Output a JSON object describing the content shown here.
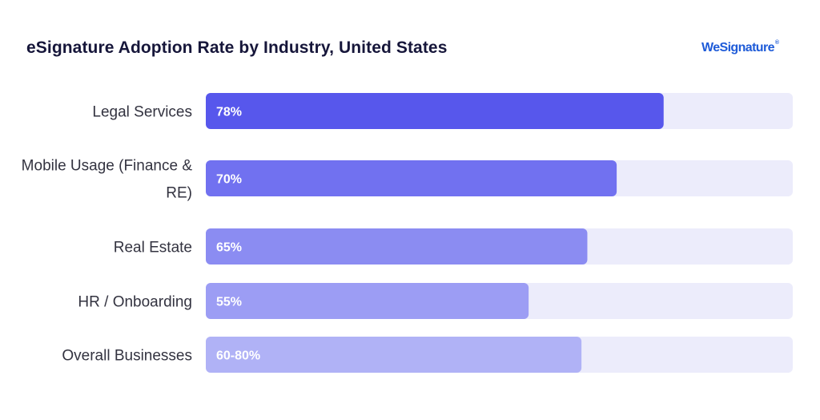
{
  "brand": {
    "name": "WeSignature",
    "mark": "®"
  },
  "chart_data": {
    "type": "bar",
    "orientation": "horizontal",
    "title": "eSignature Adoption Rate by Industry, United States",
    "xlabel": "",
    "ylabel": "",
    "xlim": [
      0,
      100
    ],
    "grid": false,
    "categories": [
      "Legal Services",
      "Mobile Usage (Finance & RE)",
      "Real Estate",
      "HR / Onboarding",
      "Overall Businesses"
    ],
    "category_lines": [
      [
        "Legal Services"
      ],
      [
        "Mobile Usage (Finance &",
        "RE)"
      ],
      [
        "Real Estate"
      ],
      [
        "HR / Onboarding"
      ],
      [
        "Overall Businesses"
      ]
    ],
    "values": [
      78,
      70,
      65,
      55,
      64
    ],
    "labels": [
      "78%",
      "70%",
      "65%",
      "55%",
      "60-80%"
    ],
    "colors": [
      "#5757ec",
      "#7171f0",
      "#8b8cf2",
      "#9c9df4",
      "#b0b2f6"
    ],
    "track_color": "#ececfb"
  }
}
